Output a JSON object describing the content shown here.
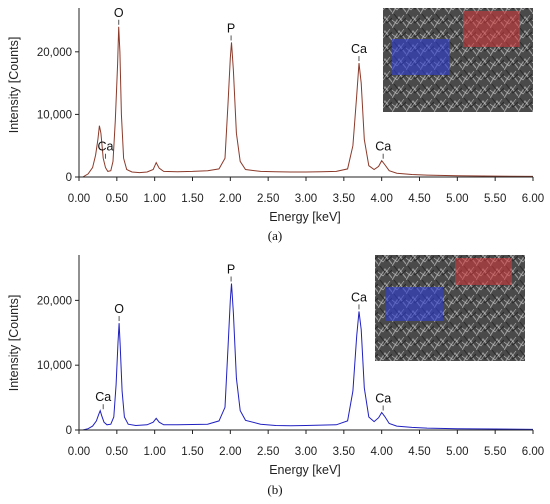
{
  "chart_data": [
    {
      "type": "line",
      "caption": "(a)",
      "xlabel": "Energy [keV]",
      "ylabel": "Intensity [Counts]",
      "xlim": [
        0,
        6
      ],
      "ylim": [
        0,
        27000
      ],
      "x_ticks": [
        "0.00",
        "0.50",
        "1.00",
        "1.50",
        "2.00",
        "2.50",
        "3.00",
        "3.50",
        "4.00",
        "4.50",
        "5.00",
        "5.50",
        "6.00"
      ],
      "y_ticks": [
        "0",
        "10,000",
        "20,000"
      ],
      "grid": false,
      "series": [
        {
          "color": "#8b3a2a",
          "points": [
            [
              0.05,
              0
            ],
            [
              0.12,
              500
            ],
            [
              0.18,
              1500
            ],
            [
              0.22,
              3500
            ],
            [
              0.25,
              6000
            ],
            [
              0.27,
              8200
            ],
            [
              0.29,
              7000
            ],
            [
              0.32,
              3000
            ],
            [
              0.35,
              1500
            ],
            [
              0.38,
              900
            ],
            [
              0.42,
              1000
            ],
            [
              0.45,
              2500
            ],
            [
              0.48,
              9000
            ],
            [
              0.51,
              18000
            ],
            [
              0.525,
              24000
            ],
            [
              0.54,
              20000
            ],
            [
              0.56,
              10000
            ],
            [
              0.59,
              3000
            ],
            [
              0.63,
              1200
            ],
            [
              0.7,
              800
            ],
            [
              0.8,
              700
            ],
            [
              0.9,
              800
            ],
            [
              0.98,
              1200
            ],
            [
              1.02,
              2300
            ],
            [
              1.06,
              1400
            ],
            [
              1.12,
              900
            ],
            [
              1.3,
              850
            ],
            [
              1.5,
              900
            ],
            [
              1.7,
              1000
            ],
            [
              1.85,
              1300
            ],
            [
              1.93,
              3000
            ],
            [
              1.97,
              12000
            ],
            [
              2.0,
              19000
            ],
            [
              2.015,
              21500
            ],
            [
              2.04,
              17000
            ],
            [
              2.08,
              7000
            ],
            [
              2.13,
              2500
            ],
            [
              2.2,
              1200
            ],
            [
              2.4,
              900
            ],
            [
              2.6,
              850
            ],
            [
              2.8,
              800
            ],
            [
              3.0,
              800
            ],
            [
              3.2,
              850
            ],
            [
              3.4,
              900
            ],
            [
              3.55,
              1300
            ],
            [
              3.62,
              5000
            ],
            [
              3.67,
              13000
            ],
            [
              3.7,
              18200
            ],
            [
              3.73,
              15000
            ],
            [
              3.77,
              6000
            ],
            [
              3.83,
              1800
            ],
            [
              3.9,
              1200
            ],
            [
              3.96,
              1700
            ],
            [
              4.0,
              2600
            ],
            [
              4.04,
              2000
            ],
            [
              4.1,
              1000
            ],
            [
              4.2,
              600
            ],
            [
              4.4,
              400
            ],
            [
              4.6,
              300
            ],
            [
              5.0,
              200
            ],
            [
              5.5,
              150
            ],
            [
              6.0,
              100
            ]
          ]
        }
      ],
      "annotations": [
        {
          "text": "O",
          "x": 0.525,
          "y": 24000
        },
        {
          "text": "P",
          "x": 2.01,
          "y": 21500
        },
        {
          "text": "Ca",
          "x": 3.7,
          "y": 18200
        },
        {
          "text": "Ca",
          "x": 0.35,
          "y": 2600
        },
        {
          "text": "Ca",
          "x": 4.02,
          "y": 2600
        }
      ],
      "inset": {
        "regions": [
          {
            "color": "#d9393a",
            "opacity": 0.55
          },
          {
            "color": "#2f3fd6",
            "opacity": 0.6
          }
        ]
      }
    },
    {
      "type": "line",
      "caption": "(b)",
      "xlabel": "Energy [keV]",
      "ylabel": "Intensity [Counts]",
      "xlim": [
        0,
        6
      ],
      "ylim": [
        0,
        27000
      ],
      "x_ticks": [
        "0.00",
        "0.50",
        "1.00",
        "1.50",
        "2.00",
        "2.50",
        "3.00",
        "3.50",
        "4.00",
        "4.50",
        "5.00",
        "5.50",
        "6.00"
      ],
      "y_ticks": [
        "0",
        "10,000",
        "20,000"
      ],
      "grid": false,
      "series": [
        {
          "color": "#2020c0",
          "points": [
            [
              0.05,
              0
            ],
            [
              0.12,
              200
            ],
            [
              0.18,
              600
            ],
            [
              0.23,
              1400
            ],
            [
              0.26,
              2400
            ],
            [
              0.28,
              3000
            ],
            [
              0.3,
              2200
            ],
            [
              0.33,
              1200
            ],
            [
              0.37,
              800
            ],
            [
              0.42,
              900
            ],
            [
              0.46,
              2000
            ],
            [
              0.49,
              7000
            ],
            [
              0.515,
              13500
            ],
            [
              0.53,
              16500
            ],
            [
              0.545,
              13000
            ],
            [
              0.57,
              6000
            ],
            [
              0.6,
              2000
            ],
            [
              0.65,
              900
            ],
            [
              0.75,
              700
            ],
            [
              0.9,
              800
            ],
            [
              0.98,
              1200
            ],
            [
              1.02,
              1800
            ],
            [
              1.06,
              1200
            ],
            [
              1.12,
              800
            ],
            [
              1.3,
              800
            ],
            [
              1.5,
              850
            ],
            [
              1.7,
              900
            ],
            [
              1.85,
              1400
            ],
            [
              1.93,
              3500
            ],
            [
              1.97,
              13000
            ],
            [
              2.0,
              20000
            ],
            [
              2.015,
              22600
            ],
            [
              2.04,
              18000
            ],
            [
              2.08,
              8000
            ],
            [
              2.13,
              3000
            ],
            [
              2.2,
              1500
            ],
            [
              2.4,
              900
            ],
            [
              2.6,
              700
            ],
            [
              2.8,
              650
            ],
            [
              3.0,
              700
            ],
            [
              3.2,
              750
            ],
            [
              3.4,
              800
            ],
            [
              3.55,
              1400
            ],
            [
              3.62,
              6000
            ],
            [
              3.67,
              14500
            ],
            [
              3.7,
              18300
            ],
            [
              3.73,
              15500
            ],
            [
              3.77,
              6500
            ],
            [
              3.83,
              2000
            ],
            [
              3.9,
              1300
            ],
            [
              3.96,
              1900
            ],
            [
              4.0,
              2700
            ],
            [
              4.04,
              2100
            ],
            [
              4.1,
              1000
            ],
            [
              4.2,
              600
            ],
            [
              4.4,
              400
            ],
            [
              4.6,
              300
            ],
            [
              5.0,
              200
            ],
            [
              5.5,
              150
            ],
            [
              6.0,
              100
            ]
          ]
        }
      ],
      "annotations": [
        {
          "text": "P",
          "x": 2.01,
          "y": 22600
        },
        {
          "text": "O",
          "x": 0.53,
          "y": 16500
        },
        {
          "text": "Ca",
          "x": 3.7,
          "y": 18300
        },
        {
          "text": "Ca",
          "x": 0.32,
          "y": 2900
        },
        {
          "text": "Ca",
          "x": 4.02,
          "y": 2700
        }
      ],
      "inset": {
        "regions": [
          {
            "color": "#d9393a",
            "opacity": 0.55
          },
          {
            "color": "#2f3fd6",
            "opacity": 0.6
          }
        ]
      }
    }
  ]
}
